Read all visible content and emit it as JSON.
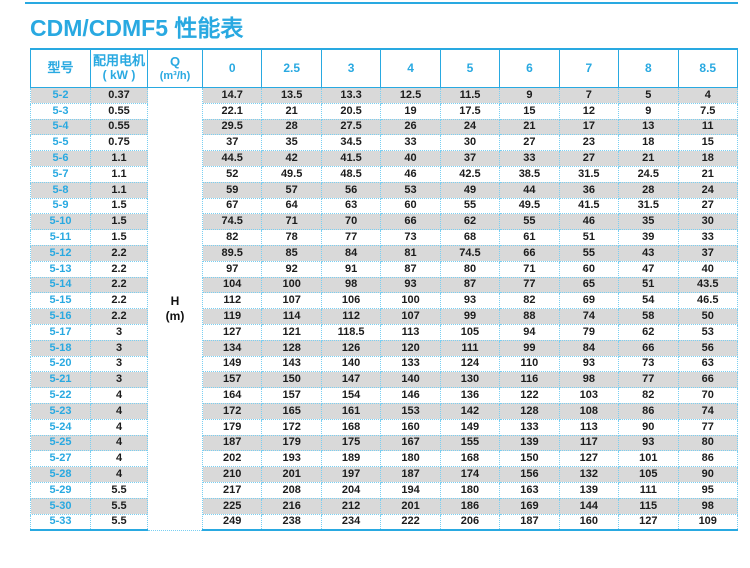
{
  "page": {
    "title": "CDM/CDMF5 性能表"
  },
  "colors": {
    "accent_blue": "#29a9e1",
    "stripe_gray": "#d9d9d9",
    "dotted_border": "#79cff2"
  },
  "table": {
    "header": {
      "model_label": "型号",
      "motor_label": "配用电机",
      "motor_unit": "( kW )",
      "q_label": "Q",
      "q_unit": "(m³/h)",
      "flow_columns": [
        "0",
        "2.5",
        "3",
        "4",
        "5",
        "6",
        "7",
        "8",
        "8.5"
      ]
    },
    "head_label": "H",
    "head_unit": "(m)",
    "rows": [
      {
        "model": "5-2",
        "kw": "0.37",
        "values": [
          "14.7",
          "13.5",
          "13.3",
          "12.5",
          "11.5",
          "9",
          "7",
          "5",
          "4"
        ]
      },
      {
        "model": "5-3",
        "kw": "0.55",
        "values": [
          "22.1",
          "21",
          "20.5",
          "19",
          "17.5",
          "15",
          "12",
          "9",
          "7.5"
        ]
      },
      {
        "model": "5-4",
        "kw": "0.55",
        "values": [
          "29.5",
          "28",
          "27.5",
          "26",
          "24",
          "21",
          "17",
          "13",
          "11"
        ]
      },
      {
        "model": "5-5",
        "kw": "0.75",
        "values": [
          "37",
          "35",
          "34.5",
          "33",
          "30",
          "27",
          "23",
          "18",
          "15"
        ]
      },
      {
        "model": "5-6",
        "kw": "1.1",
        "values": [
          "44.5",
          "42",
          "41.5",
          "40",
          "37",
          "33",
          "27",
          "21",
          "18"
        ]
      },
      {
        "model": "5-7",
        "kw": "1.1",
        "values": [
          "52",
          "49.5",
          "48.5",
          "46",
          "42.5",
          "38.5",
          "31.5",
          "24.5",
          "21"
        ]
      },
      {
        "model": "5-8",
        "kw": "1.1",
        "values": [
          "59",
          "57",
          "56",
          "53",
          "49",
          "44",
          "36",
          "28",
          "24"
        ]
      },
      {
        "model": "5-9",
        "kw": "1.5",
        "values": [
          "67",
          "64",
          "63",
          "60",
          "55",
          "49.5",
          "41.5",
          "31.5",
          "27"
        ]
      },
      {
        "model": "5-10",
        "kw": "1.5",
        "values": [
          "74.5",
          "71",
          "70",
          "66",
          "62",
          "55",
          "46",
          "35",
          "30"
        ]
      },
      {
        "model": "5-11",
        "kw": "1.5",
        "values": [
          "82",
          "78",
          "77",
          "73",
          "68",
          "61",
          "51",
          "39",
          "33"
        ]
      },
      {
        "model": "5-12",
        "kw": "2.2",
        "values": [
          "89.5",
          "85",
          "84",
          "81",
          "74.5",
          "66",
          "55",
          "43",
          "37"
        ]
      },
      {
        "model": "5-13",
        "kw": "2.2",
        "values": [
          "97",
          "92",
          "91",
          "87",
          "80",
          "71",
          "60",
          "47",
          "40"
        ]
      },
      {
        "model": "5-14",
        "kw": "2.2",
        "values": [
          "104",
          "100",
          "98",
          "93",
          "87",
          "77",
          "65",
          "51",
          "43.5"
        ]
      },
      {
        "model": "5-15",
        "kw": "2.2",
        "values": [
          "112",
          "107",
          "106",
          "100",
          "93",
          "82",
          "69",
          "54",
          "46.5"
        ]
      },
      {
        "model": "5-16",
        "kw": "2.2",
        "values": [
          "119",
          "114",
          "112",
          "107",
          "99",
          "88",
          "74",
          "58",
          "50"
        ]
      },
      {
        "model": "5-17",
        "kw": "3",
        "values": [
          "127",
          "121",
          "118.5",
          "113",
          "105",
          "94",
          "79",
          "62",
          "53"
        ]
      },
      {
        "model": "5-18",
        "kw": "3",
        "values": [
          "134",
          "128",
          "126",
          "120",
          "111",
          "99",
          "84",
          "66",
          "56"
        ]
      },
      {
        "model": "5-20",
        "kw": "3",
        "values": [
          "149",
          "143",
          "140",
          "133",
          "124",
          "110",
          "93",
          "73",
          "63"
        ]
      },
      {
        "model": "5-21",
        "kw": "3",
        "values": [
          "157",
          "150",
          "147",
          "140",
          "130",
          "116",
          "98",
          "77",
          "66"
        ]
      },
      {
        "model": "5-22",
        "kw": "4",
        "values": [
          "164",
          "157",
          "154",
          "146",
          "136",
          "122",
          "103",
          "82",
          "70"
        ]
      },
      {
        "model": "5-23",
        "kw": "4",
        "values": [
          "172",
          "165",
          "161",
          "153",
          "142",
          "128",
          "108",
          "86",
          "74"
        ]
      },
      {
        "model": "5-24",
        "kw": "4",
        "values": [
          "179",
          "172",
          "168",
          "160",
          "149",
          "133",
          "113",
          "90",
          "77"
        ]
      },
      {
        "model": "5-25",
        "kw": "4",
        "values": [
          "187",
          "179",
          "175",
          "167",
          "155",
          "139",
          "117",
          "93",
          "80"
        ]
      },
      {
        "model": "5-27",
        "kw": "4",
        "values": [
          "202",
          "193",
          "189",
          "180",
          "168",
          "150",
          "127",
          "101",
          "86"
        ]
      },
      {
        "model": "5-28",
        "kw": "4",
        "values": [
          "210",
          "201",
          "197",
          "187",
          "174",
          "156",
          "132",
          "105",
          "90"
        ]
      },
      {
        "model": "5-29",
        "kw": "5.5",
        "values": [
          "217",
          "208",
          "204",
          "194",
          "180",
          "163",
          "139",
          "111",
          "95"
        ]
      },
      {
        "model": "5-30",
        "kw": "5.5",
        "values": [
          "225",
          "216",
          "212",
          "201",
          "186",
          "169",
          "144",
          "115",
          "98"
        ]
      },
      {
        "model": "5-33",
        "kw": "5.5",
        "values": [
          "249",
          "238",
          "234",
          "222",
          "206",
          "187",
          "160",
          "127",
          "109"
        ]
      }
    ]
  }
}
